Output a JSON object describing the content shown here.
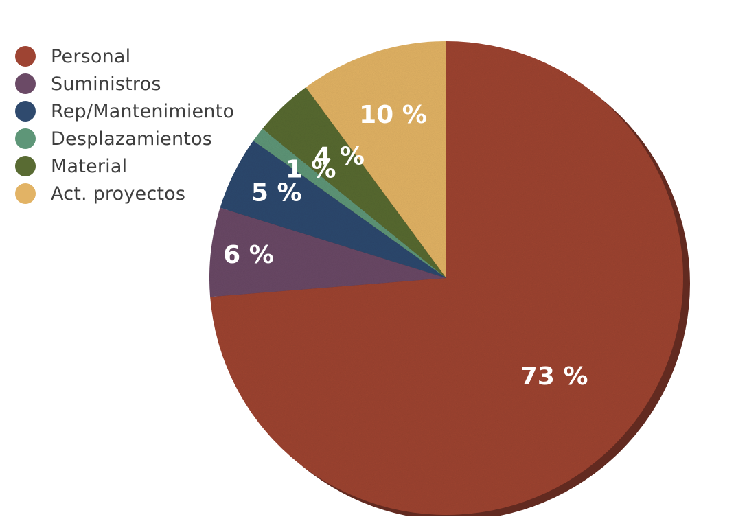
{
  "chart_data": {
    "type": "pie",
    "categories": [
      "Personal",
      "Suministros",
      "Rep/Mantenimiento",
      "Desplazamientos",
      "Material",
      "Act. proyectos"
    ],
    "values": [
      73,
      6,
      5,
      1,
      4,
      10
    ],
    "value_labels": [
      "73 %",
      "6 %",
      "5 %",
      "1 %",
      "4 %",
      "10 %"
    ],
    "colors": [
      "#9e4433",
      "#6b4a66",
      "#2f4a6e",
      "#5e9678",
      "#596b33",
      "#e2b365"
    ],
    "start": "12 o'clock",
    "direction": "clockwise",
    "legend_position": "top-left",
    "title": "",
    "xlabel": "",
    "ylabel": ""
  }
}
